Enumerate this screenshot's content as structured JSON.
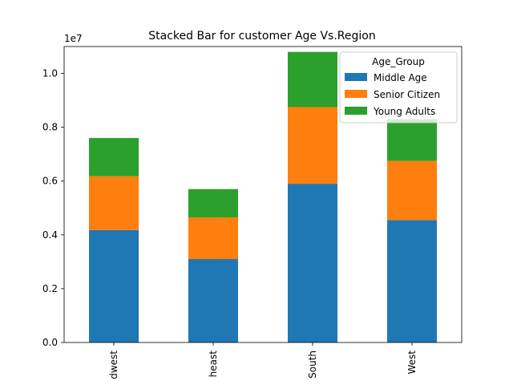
{
  "chart_data": {
    "type": "bar",
    "stacked": true,
    "title": "Stacked Bar for customer Age Vs.Region",
    "xlabel": "",
    "ylabel": "",
    "y_offset_label": "1e7",
    "ylim": [
      0,
      1.1
    ],
    "y_ticks": [
      "0.0",
      "0.2",
      "0.4",
      "0.6",
      "0.8",
      "1.0"
    ],
    "categories": [
      "Midwest",
      "Northeast",
      "South",
      "West"
    ],
    "category_labels_visible": [
      "dwest",
      "heast",
      "South",
      "West"
    ],
    "series": [
      {
        "name": "Middle Age",
        "color": "#1f77b4",
        "values": [
          0.418,
          0.31,
          0.59,
          0.455
        ]
      },
      {
        "name": "Senior Citizen",
        "color": "#ff7f0e",
        "values": [
          0.2,
          0.155,
          0.285,
          0.22
        ]
      },
      {
        "name": "Young Adults",
        "color": "#2ca02c",
        "values": [
          0.142,
          0.105,
          0.205,
          0.155
        ]
      }
    ],
    "legend_title": "Age_Group",
    "legend_position": "upper-right",
    "grid": false
  }
}
